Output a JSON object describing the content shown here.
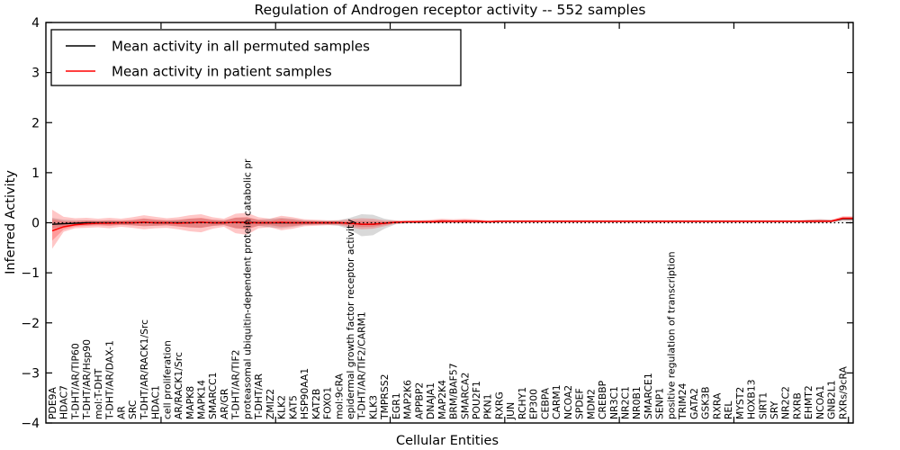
{
  "chart_data": {
    "type": "area",
    "title": "Regulation of Androgen receptor activity -- 552 samples",
    "xlabel": "Cellular Entities",
    "ylabel": "Inferred Activity",
    "ylim": [
      -4,
      4
    ],
    "yticks": [
      {
        "v": -4,
        "label": "−4"
      },
      {
        "v": -3,
        "label": "−3"
      },
      {
        "v": -2,
        "label": "−2"
      },
      {
        "v": -1,
        "label": "−1"
      },
      {
        "v": 0,
        "label": "0"
      },
      {
        "v": 1,
        "label": "1"
      },
      {
        "v": 2,
        "label": "2"
      },
      {
        "v": 3,
        "label": "3"
      },
      {
        "v": 4,
        "label": "4"
      }
    ],
    "grid": false,
    "legend_loc": "upper left",
    "legend": [
      {
        "label": "Mean activity in all permuted samples",
        "color": "#000000"
      },
      {
        "label": "Mean activity in patient samples",
        "color": "#ff0000"
      }
    ],
    "zero_line": {
      "y": 0,
      "style": "dotted",
      "color": "#000000"
    },
    "colors": {
      "permuted_line": "#000000",
      "patient_line": "#ff0000",
      "permuted_fill": "rgba(0,0,0,0.15)",
      "patient_fill": "rgba(255,0,0,0.22)"
    },
    "categories": [
      "PDE9A",
      "HDAC7",
      "T-DHT/AR/TIP60",
      "T-DHT/AR/Hsp90",
      "mol:T-DHT",
      "T-DHT/AR/DAX-1",
      "AR",
      "SRC",
      "T-DHT/AR/RACK1/Src",
      "HDAC1",
      "cell proliferation",
      "AR/RACK1/Src",
      "MAPK8",
      "MAPK14",
      "SMARCC1",
      "AR/GR",
      "T-DHT/AR/TIF2",
      "proteasomal ubiquitin-dependent protein catabolic pr",
      "T-DHT/AR",
      "ZMIZ2",
      "KLK2",
      "KAT5",
      "HSP90AA1",
      "KAT2B",
      "FOXO1",
      "mol:9cRA",
      "epidermal growth factor receptor activity",
      "T-DHT/AR/TIF2/CARM1",
      "KLK3",
      "TMPRSS2",
      "EGR1",
      "MAP2K6",
      "APPBP2",
      "DNAJA1",
      "MAP2K4",
      "BRM/BAF57",
      "SMARCA2",
      "POU2F1",
      "PKN1",
      "RXRG",
      "JUN",
      "RCHY1",
      "EP300",
      "CEBPA",
      "CARM1",
      "NCOA2",
      "SPDEF",
      "MDM2",
      "CREBBP",
      "NR3C1",
      "NR2C1",
      "NR0B1",
      "SMARCE1",
      "SENP1",
      "positive regulation of transcription",
      "TRIM24",
      "GATA2",
      "GSK3B",
      "RXRA",
      "REL",
      "MYST2",
      "HOXB13",
      "SIRT1",
      "SRY",
      "NR2C2",
      "RXRB",
      "EHMT2",
      "NCOA1",
      "GNB2L1",
      "RXRs/9cRA"
    ],
    "series": [
      {
        "name": "Mean activity in all permuted samples",
        "mean": [
          -0.03,
          -0.02,
          -0.01,
          0,
          0,
          0,
          0,
          0,
          0.01,
          0,
          0,
          0,
          0,
          0.01,
          0,
          0,
          0.01,
          0.01,
          0,
          0,
          0,
          0,
          0,
          0,
          0,
          0,
          -0.01,
          -0.03,
          -0.03,
          -0.01,
          0.01,
          0.02,
          0.02,
          0.02,
          0.03,
          0.03,
          0.03,
          0.03,
          0.02,
          0.03,
          0.03,
          0.03,
          0.03,
          0.03,
          0.03,
          0.03,
          0.03,
          0.03,
          0.03,
          0.03,
          0.03,
          0.03,
          0.03,
          0.03,
          0.03,
          0.03,
          0.03,
          0.03,
          0.03,
          0.03,
          0.03,
          0.03,
          0.03,
          0.03,
          0.03,
          0.03,
          0.03,
          0.03,
          0.03,
          0.08
        ],
        "band_upper": [
          0.1,
          0.06,
          0.05,
          0.05,
          0.04,
          0.05,
          0.04,
          0.05,
          0.08,
          0.06,
          0.05,
          0.06,
          0.08,
          0.09,
          0.06,
          0.05,
          0.1,
          0.11,
          0.06,
          0.08,
          0.1,
          0.08,
          0.05,
          0.04,
          0.04,
          0.05,
          0.1,
          0.17,
          0.16,
          0.08,
          0.04,
          0.03,
          0.04,
          0.04,
          0.05,
          0.04,
          0.05,
          0.04,
          0.04,
          0.03,
          0.04,
          0.04,
          0.04,
          0.04,
          0.04,
          0.04,
          0.04,
          0.04,
          0.04,
          0.04,
          0.04,
          0.04,
          0.04,
          0.04,
          0.04,
          0.04,
          0.04,
          0.04,
          0.04,
          0.04,
          0.04,
          0.04,
          0.04,
          0.04,
          0.04,
          0.04,
          0.06,
          0.07,
          0.06,
          0.07
        ],
        "band_lower": [
          -0.12,
          -0.07,
          -0.05,
          -0.05,
          -0.04,
          -0.05,
          -0.04,
          -0.05,
          -0.07,
          -0.06,
          -0.05,
          -0.07,
          -0.09,
          -0.1,
          -0.06,
          -0.05,
          -0.11,
          -0.12,
          -0.06,
          -0.09,
          -0.11,
          -0.08,
          -0.05,
          -0.04,
          -0.04,
          -0.06,
          -0.14,
          -0.27,
          -0.25,
          -0.12,
          -0.03,
          -0.01,
          -0.01,
          0,
          0,
          0,
          0,
          0,
          0,
          0.01,
          0.01,
          0.01,
          0.01,
          0.01,
          0.01,
          0.01,
          0.01,
          0.01,
          0.01,
          0.01,
          0.01,
          0.01,
          0.01,
          0.01,
          0.01,
          0.01,
          0.01,
          0.01,
          0.01,
          0.01,
          0.01,
          0.01,
          0.01,
          0.01,
          0.01,
          0.01,
          0,
          0,
          0.01,
          0.03
        ]
      },
      {
        "name": "Mean activity in patient samples",
        "mean": [
          -0.16,
          -0.08,
          -0.04,
          -0.02,
          -0.01,
          -0.01,
          0,
          0,
          0.01,
          0,
          0,
          -0.01,
          0,
          0.01,
          0,
          0,
          0.01,
          0,
          0,
          0,
          0.01,
          0,
          0,
          0,
          0,
          0,
          -0.01,
          -0.03,
          -0.03,
          -0.01,
          0.01,
          0.02,
          0.02,
          0.02,
          0.03,
          0.03,
          0.03,
          0.03,
          0.02,
          0.03,
          0.03,
          0.03,
          0.03,
          0.03,
          0.03,
          0.03,
          0.03,
          0.03,
          0.03,
          0.03,
          0.03,
          0.03,
          0.03,
          0.03,
          0.03,
          0.03,
          0.03,
          0.03,
          0.03,
          0.03,
          0.03,
          0.03,
          0.03,
          0.03,
          0.03,
          0.03,
          0.03,
          0.03,
          0.03,
          0.09
        ],
        "band_upper": [
          0.26,
          0.12,
          0.09,
          0.1,
          0.08,
          0.1,
          0.08,
          0.11,
          0.15,
          0.12,
          0.09,
          0.11,
          0.15,
          0.17,
          0.11,
          0.08,
          0.18,
          0.2,
          0.11,
          0.08,
          0.14,
          0.11,
          0.07,
          0.06,
          0.05,
          0.05,
          0.07,
          0.09,
          0.08,
          0.05,
          0.05,
          0.04,
          0.05,
          0.06,
          0.08,
          0.07,
          0.08,
          0.07,
          0.05,
          0.05,
          0.05,
          0.05,
          0.05,
          0.05,
          0.05,
          0.05,
          0.05,
          0.05,
          0.05,
          0.05,
          0.05,
          0.05,
          0.05,
          0.05,
          0.05,
          0.05,
          0.05,
          0.05,
          0.05,
          0.05,
          0.05,
          0.05,
          0.05,
          0.05,
          0.05,
          0.05,
          0.06,
          0.07,
          0.06,
          0.13
        ],
        "band_lower": [
          -0.52,
          -0.18,
          -0.11,
          -0.1,
          -0.09,
          -0.11,
          -0.08,
          -0.1,
          -0.13,
          -0.11,
          -0.1,
          -0.13,
          -0.17,
          -0.19,
          -0.12,
          -0.08,
          -0.21,
          -0.24,
          -0.11,
          -0.09,
          -0.15,
          -0.12,
          -0.07,
          -0.06,
          -0.05,
          -0.05,
          -0.09,
          -0.13,
          -0.12,
          -0.07,
          -0.02,
          -0.01,
          -0.01,
          -0.01,
          -0.01,
          0,
          -0.01,
          0,
          0,
          0.01,
          0.01,
          0.01,
          0.01,
          0.01,
          0.01,
          0.01,
          0.01,
          0.01,
          0.01,
          0.01,
          0.01,
          0.01,
          0.01,
          0.01,
          0.01,
          0.01,
          0.01,
          0.01,
          0.01,
          0.01,
          0.01,
          0.01,
          0.01,
          0.01,
          0.01,
          0.01,
          0,
          0.01,
          0.01,
          0.05
        ]
      }
    ]
  }
}
